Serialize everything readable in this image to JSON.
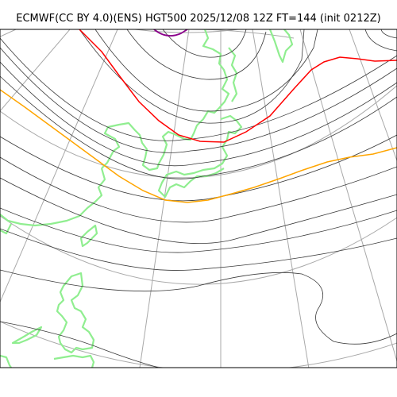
{
  "title": "ECMWF(CC BY 4.0)(ENS) HGT500 2025/12/08 12Z FT=144 (init 0212Z)",
  "colors": {
    "contour": "#3a3a3a",
    "graticule": "#a8a8a8",
    "coastline": "#90ee90",
    "highlight_red": "#ff0000",
    "highlight_orange": "#ffa500",
    "highlight_purple": "#8b008b",
    "frame": "#000000"
  }
}
